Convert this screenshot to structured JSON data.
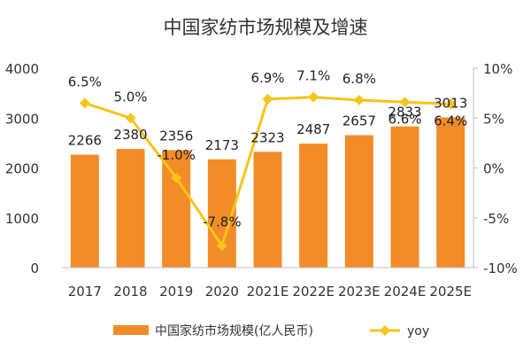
{
  "chart_data": {
    "type": "bar",
    "title": "中国家纺市场规模及增速",
    "categories": [
      "2017",
      "2018",
      "2019",
      "2020",
      "2021E",
      "2022E",
      "2023E",
      "2024E",
      "2025E"
    ],
    "series": [
      {
        "name": "中国家纺市场规模(亿人民币)",
        "type": "bar",
        "axis": "left",
        "color": "#F28C28",
        "values": [
          2266,
          2380,
          2356,
          2173,
          2323,
          2487,
          2657,
          2833,
          3013
        ],
        "labels": [
          "2266",
          "2380",
          "2356",
          "2173",
          "2323",
          "2487",
          "2657",
          "2833",
          "3013"
        ]
      },
      {
        "name": "yoy",
        "type": "line",
        "axis": "right",
        "color": "#F5C518",
        "values": [
          6.5,
          5.0,
          -1.0,
          -7.8,
          6.9,
          7.1,
          6.8,
          6.6,
          6.4
        ],
        "labels": [
          "6.5%",
          "5.0%",
          "-1.0%",
          "-7.8%",
          "6.9%",
          "7.1%",
          "6.8%",
          "6.6%",
          "6.4%"
        ]
      }
    ],
    "y_left": {
      "min": 0,
      "max": 4000,
      "ticks": [
        0,
        1000,
        2000,
        3000,
        4000
      ],
      "tick_labels": [
        "0",
        "1000",
        "2000",
        "3000",
        "4000"
      ]
    },
    "y_right": {
      "min": -10,
      "max": 10,
      "ticks": [
        -10,
        -5,
        0,
        5,
        10
      ],
      "tick_labels": [
        "-10%",
        "-5%",
        "0%",
        "5%",
        "10%"
      ]
    },
    "grid": false,
    "legend_position": "bottom"
  }
}
